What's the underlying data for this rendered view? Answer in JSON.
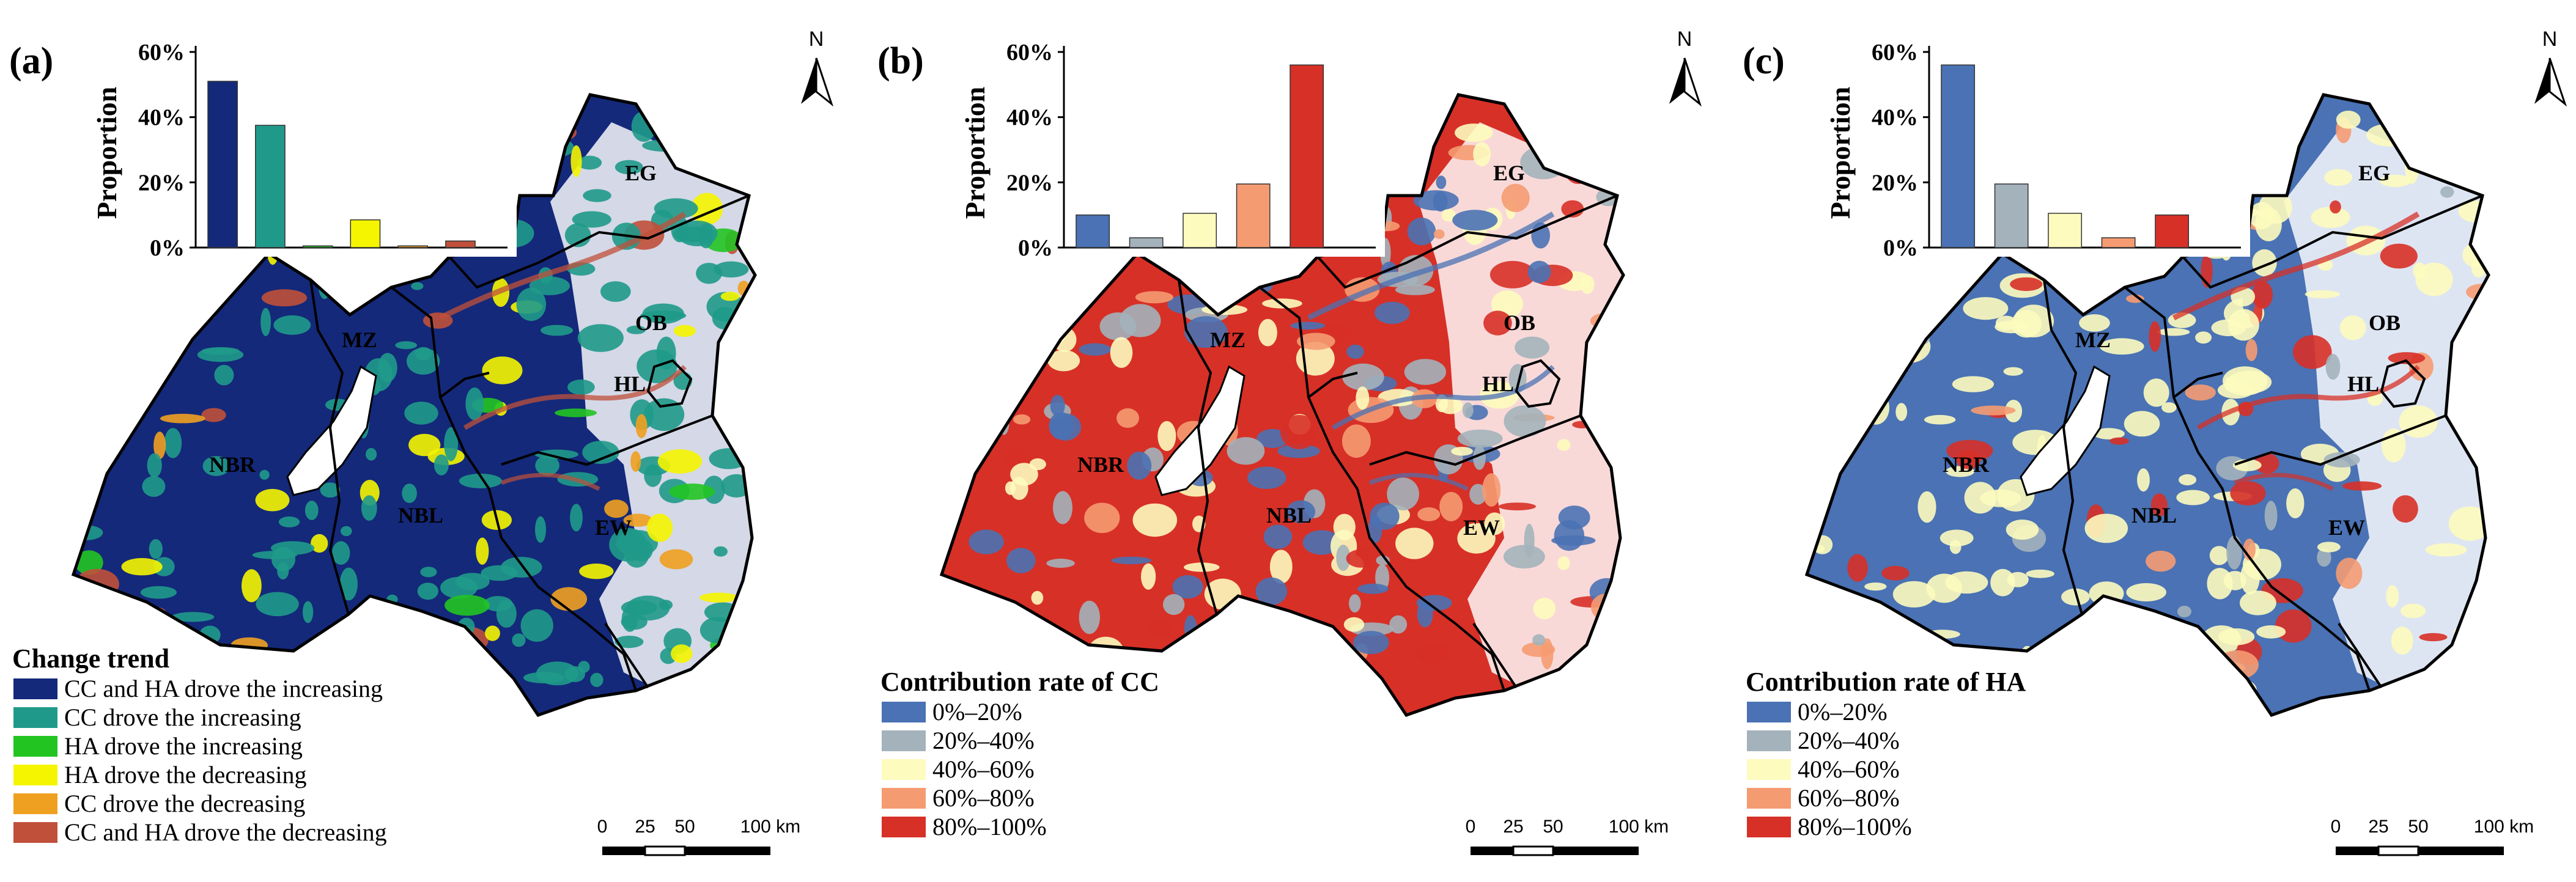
{
  "colors": {
    "trend": [
      "#14297a",
      "#1f9a8a",
      "#22c422",
      "#f5f500",
      "#f0a020",
      "#c0503a"
    ],
    "contrib": [
      "#4a72b4",
      "#a3b2bb",
      "#fdfbbe",
      "#f59b72",
      "#d73027"
    ]
  },
  "panels": [
    {
      "label": "(a)",
      "base_color": "#14297a",
      "north": "N",
      "scale": {
        "t0": "0",
        "t1": "25",
        "t2": "50",
        "t3": "100 km"
      },
      "chart_data": {
        "type": "bar",
        "ylabel": "Proportion",
        "yticks": [
          "0%",
          "20%",
          "40%",
          "60%"
        ],
        "ylim": [
          0,
          60
        ],
        "categories": [
          "CC and HA drove the increasing",
          "CC drove the increasing",
          "HA drove the increasing",
          "HA drove the decreasing",
          "CC drove the decreasing",
          "CC and HA drove the decreasing"
        ],
        "values": [
          51,
          37.5,
          0.5,
          8.5,
          0.5,
          2
        ]
      },
      "legend": {
        "title": "Change trend",
        "items": [
          "CC and HA drove the increasing",
          "CC drove the increasing",
          "HA drove the increasing",
          "HA drove the decreasing",
          "CC drove the decreasing",
          "CC and HA drove the decreasing"
        ]
      },
      "regions": [
        "EG",
        "MZ",
        "OB",
        "HL",
        "NBR",
        "NBL",
        "EW"
      ]
    },
    {
      "label": "(b)",
      "base_color": "#d73027",
      "north": "N",
      "scale": {
        "t0": "0",
        "t1": "25",
        "t2": "50",
        "t3": "100 km"
      },
      "chart_data": {
        "type": "bar",
        "ylabel": "Proportion",
        "yticks": [
          "0%",
          "20%",
          "40%",
          "60%"
        ],
        "ylim": [
          0,
          60
        ],
        "categories": [
          "0%–20%",
          "20%–40%",
          "40%–60%",
          "60%–80%",
          "80%–100%"
        ],
        "values": [
          10,
          3,
          10.5,
          19.5,
          56
        ]
      },
      "legend": {
        "title": "Contribution rate of CC",
        "items": [
          "0%–20%",
          "20%–40%",
          "40%–60%",
          "60%–80%",
          "80%–100%"
        ]
      },
      "regions": [
        "EG",
        "MZ",
        "OB",
        "HL",
        "NBR",
        "NBL",
        "EW"
      ]
    },
    {
      "label": "(c)",
      "base_color": "#4a72b4",
      "north": "N",
      "scale": {
        "t0": "0",
        "t1": "25",
        "t2": "50",
        "t3": "100 km"
      },
      "chart_data": {
        "type": "bar",
        "ylabel": "Proportion",
        "yticks": [
          "0%",
          "20%",
          "40%",
          "60%"
        ],
        "ylim": [
          0,
          60
        ],
        "categories": [
          "0%–20%",
          "20%–40%",
          "40%–60%",
          "60%–80%",
          "80%–100%"
        ],
        "values": [
          56,
          19.5,
          10.5,
          3,
          10
        ]
      },
      "legend": {
        "title": "Contribution rate of HA",
        "items": [
          "0%–20%",
          "20%–40%",
          "40%–60%",
          "60%–80%",
          "80%–100%"
        ]
      },
      "regions": [
        "EG",
        "MZ",
        "OB",
        "HL",
        "NBR",
        "NBL",
        "EW"
      ]
    }
  ]
}
